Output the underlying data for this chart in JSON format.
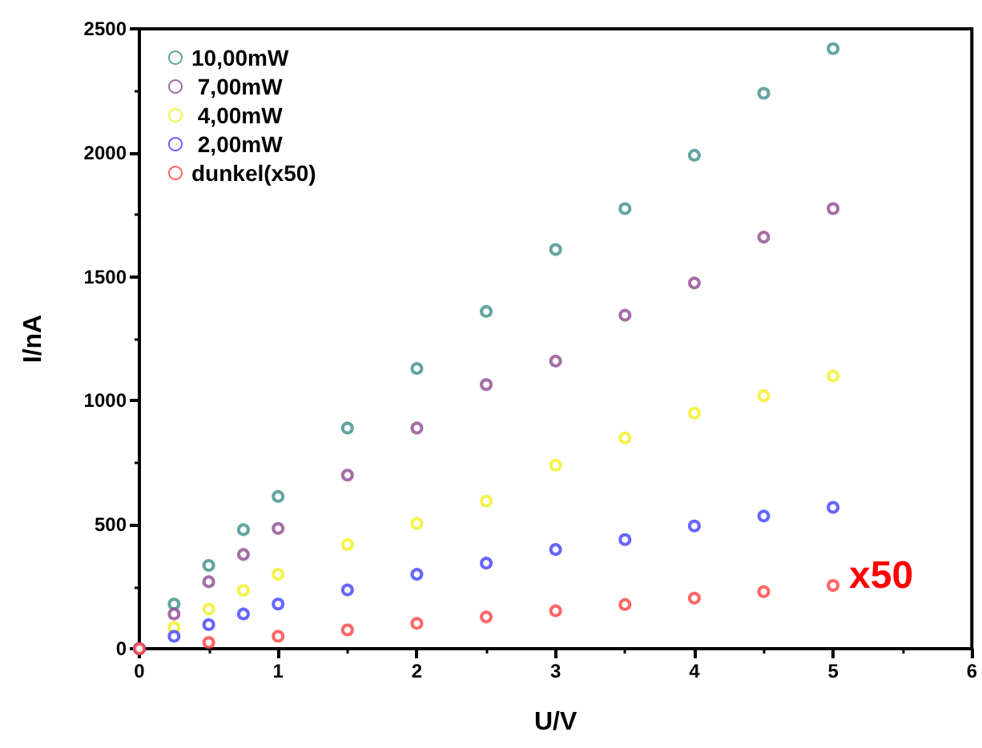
{
  "chart_data": {
    "type": "scatter",
    "xlabel": "U/V",
    "ylabel": "I/nA",
    "xlim": [
      0,
      6
    ],
    "xticks": [
      0,
      1,
      2,
      3,
      4,
      5,
      6
    ],
    "ylim": [
      0,
      2500
    ],
    "yticks": [
      0,
      500,
      1000,
      1500,
      2000,
      2500
    ],
    "grid": false,
    "legend": "top left",
    "marker": "circle",
    "annotations": [
      "x50"
    ],
    "series": [
      {
        "name": "10,00mW",
        "color": "#3d8f8a",
        "x": [
          0,
          0.25,
          0.5,
          0.75,
          1,
          1.5,
          2,
          2.5,
          3,
          3.5,
          4,
          4.5,
          5
        ],
        "values": [
          0,
          180,
          336,
          480,
          614,
          890,
          1130,
          1360,
          1610,
          1775,
          1990,
          2240,
          2420
        ]
      },
      {
        "name": " 7,00mW",
        "color": "#8e4a8e",
        "x": [
          0,
          0.25,
          0.5,
          0.75,
          1,
          1.5,
          2,
          2.5,
          3,
          3.5,
          4,
          4.5,
          5
        ],
        "values": [
          0,
          140,
          270,
          380,
          485,
          700,
          890,
          1065,
          1160,
          1345,
          1475,
          1660,
          1775
        ]
      },
      {
        "name": " 4,00mW",
        "color": "#f2f020",
        "x": [
          0,
          0.25,
          0.5,
          0.75,
          1,
          1.5,
          2,
          2.5,
          3,
          3.5,
          4,
          4.5,
          5
        ],
        "values": [
          0,
          85,
          160,
          235,
          300,
          420,
          505,
          595,
          740,
          850,
          950,
          1020,
          1100
        ]
      },
      {
        "name": " 2,00mW",
        "color": "#4040ff",
        "x": [
          0,
          0.25,
          0.5,
          0.75,
          1,
          1.5,
          2,
          2.5,
          3,
          3.5,
          4,
          4.5,
          5
        ],
        "values": [
          0,
          50,
          97,
          140,
          180,
          237,
          300,
          345,
          400,
          440,
          495,
          535,
          570
        ]
      },
      {
        "name": "dunkel(x50)",
        "color": "#ff4040",
        "x": [
          0,
          0.5,
          1,
          1.5,
          2,
          2.5,
          3,
          3.5,
          4,
          4.5,
          5
        ],
        "values": [
          0,
          25,
          50,
          76,
          102,
          128,
          153,
          178,
          204,
          230,
          255
        ]
      }
    ]
  }
}
